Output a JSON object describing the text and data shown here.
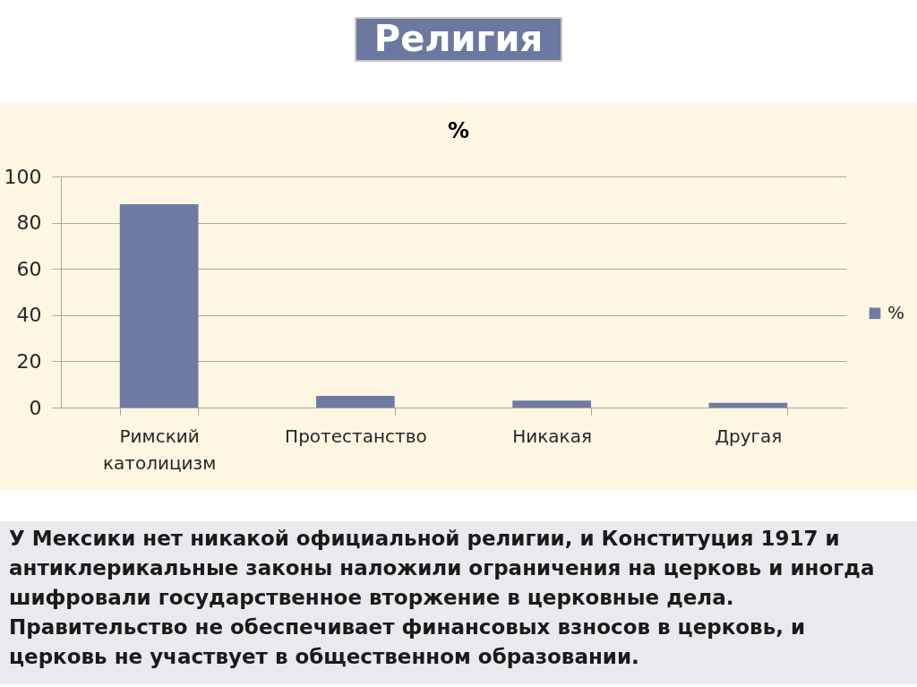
{
  "chart_data": {
    "type": "bar",
    "title": "Религия",
    "subtitle": "%",
    "categories": [
      "Римский католицизм",
      "Протестанство",
      "Никакая",
      "Другая"
    ],
    "series": [
      {
        "name": "%",
        "color": "#6f7ba3",
        "values": [
          88,
          5,
          3,
          2
        ]
      }
    ],
    "ylim": [
      0,
      100
    ],
    "yticks": [
      0,
      20,
      40,
      60,
      80,
      100
    ],
    "grid": "y",
    "legend": "right",
    "annotations": [
      "У Мексики нет никакой официальной религии, и Конституция 1917 и антиклерикальные законы наложили ограничения на церковь и иногда шифровали государственное вторжение в церковные дела. Правительство не обеспечивает финансовых взносов в церковь, и церковь не участвует в общественном образовании."
    ]
  }
}
